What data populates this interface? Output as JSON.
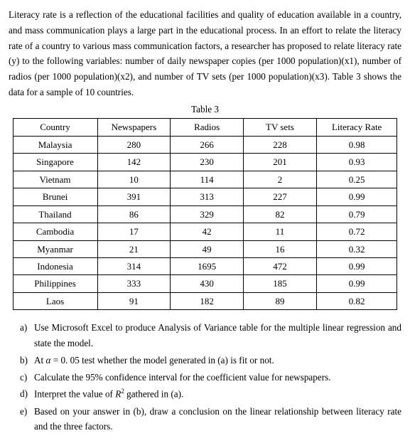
{
  "intro": {
    "text": "Literacy rate is a reflection of the educational facilities and quality of education available in a country, and mass communication plays a large part in the educational process. In an effort to relate the literacy rate of a country to various mass communication factors, a researcher has proposed to relate literacy rate (y) to the following variables: number of daily newspaper copies (per 1000 population)(x1), number of radios (per 1000 population)(x2), and number of TV sets (per 1000 population)(x3). Table 3 shows the data for a sample of 10 countries."
  },
  "table": {
    "caption": "Table 3",
    "headers": [
      "Country",
      "Newspapers",
      "Radios",
      "TV sets",
      "Literacy Rate"
    ],
    "rows": [
      [
        "Malaysia",
        "280",
        "266",
        "228",
        "0.98"
      ],
      [
        "Singapore",
        "142",
        "230",
        "201",
        "0.93"
      ],
      [
        "Vietnam",
        "10",
        "114",
        "2",
        "0.25"
      ],
      [
        "Brunei",
        "391",
        "313",
        "227",
        "0.99"
      ],
      [
        "Thailand",
        "86",
        "329",
        "82",
        "0.79"
      ],
      [
        "Cambodia",
        "17",
        "42",
        "11",
        "0.72"
      ],
      [
        "Myanmar",
        "21",
        "49",
        "16",
        "0.32"
      ],
      [
        "Indonesia",
        "314",
        "1695",
        "472",
        "0.99"
      ],
      [
        "Philippines",
        "333",
        "430",
        "185",
        "0.99"
      ],
      [
        "Laos",
        "91",
        "182",
        "89",
        "0.82"
      ]
    ],
    "col_widths": [
      "22%",
      "19%",
      "19%",
      "19%",
      "21%"
    ]
  },
  "questions": {
    "a": {
      "marker": "a)",
      "text": "Use Microsoft Excel to produce Analysis of Variance table for the multiple linear regression and state the model."
    },
    "b": {
      "marker": "b)",
      "prefix": "At ",
      "alpha": "α",
      "eq": " = 0. 05 test whether the model generated in (a) is fit or not."
    },
    "c": {
      "marker": "c)",
      "text": "Calculate the 95% confidence interval for the coefficient value for newspapers."
    },
    "d": {
      "marker": "d)",
      "prefix": "Interpret the value of ",
      "rvar": "R",
      "sup": "2",
      "suffix": " gathered in (a)."
    },
    "e": {
      "marker": "e)",
      "text": "Based on your answer in (b), draw a conclusion on the linear relationship between literacy rate and the three factors."
    }
  }
}
